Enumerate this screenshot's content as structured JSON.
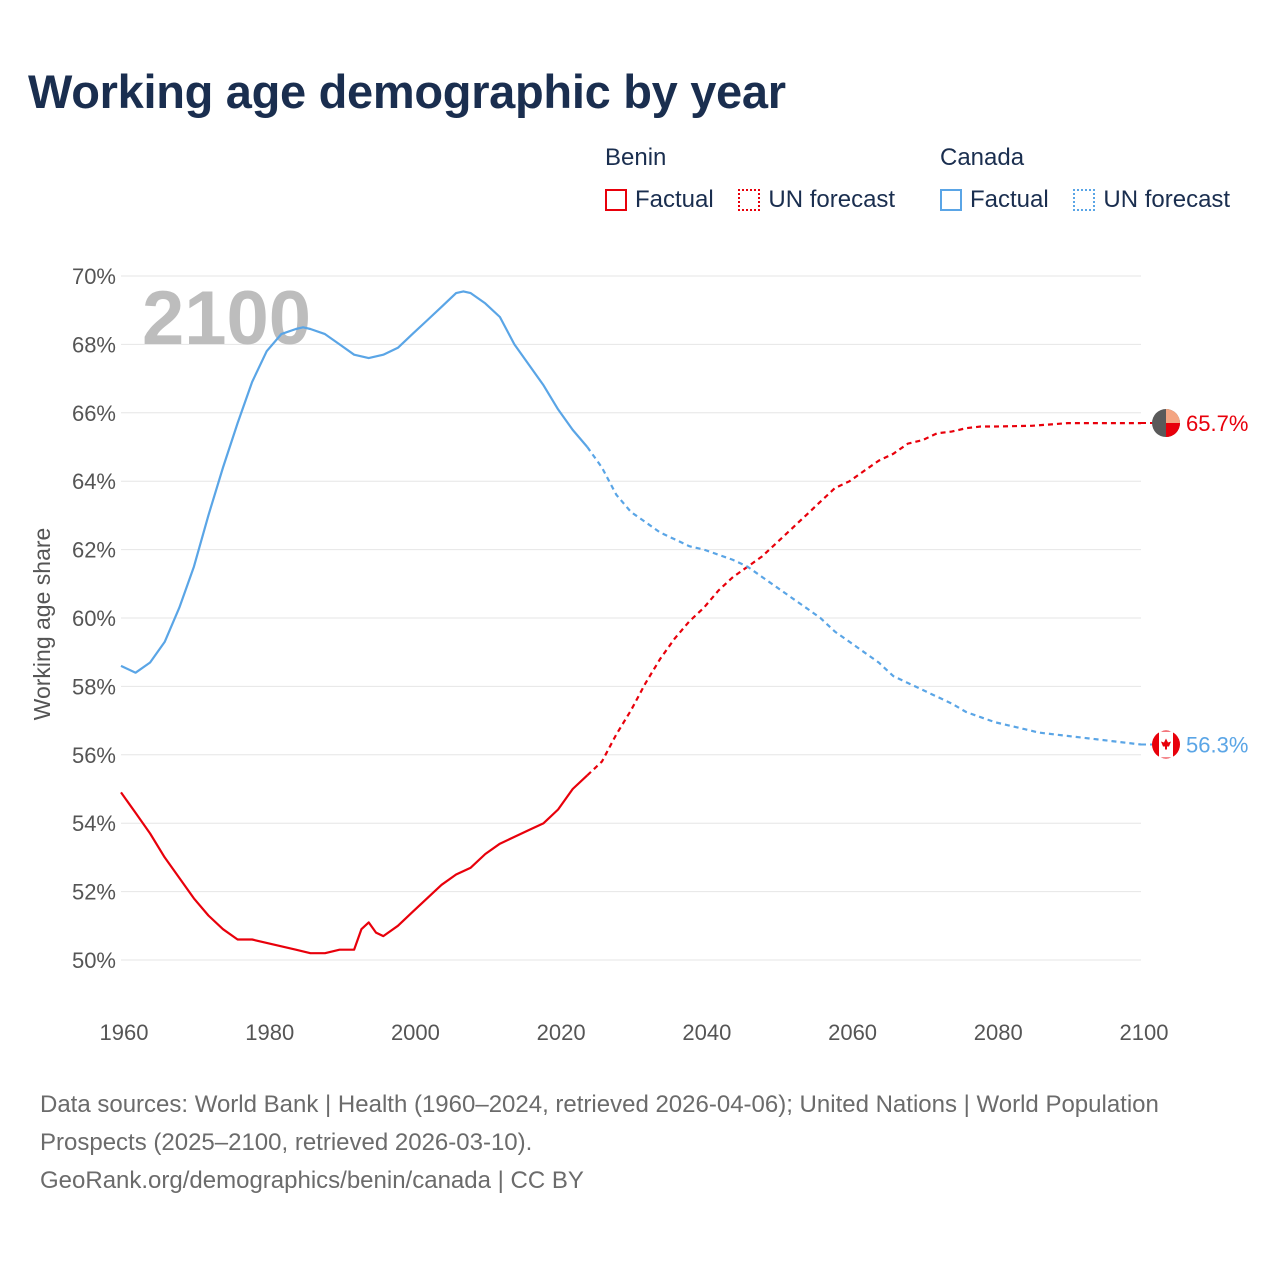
{
  "title": "Working age demographic by year",
  "legend": {
    "groups": [
      {
        "name": "Benin",
        "color": "#e8000b",
        "factual_label": "Factual",
        "forecast_label": "UN forecast"
      },
      {
        "name": "Canada",
        "color": "#5aa5e6",
        "factual_label": "Factual",
        "forecast_label": "UN forecast"
      }
    ]
  },
  "footer": {
    "line1": "Data sources: World Bank | Health (1960–2024, retrieved 2026-04-06); United Nations | World Population Prospects (2025–2100, retrieved 2026-03-10).",
    "line2": "GeoRank.org/demographics/benin/canada | CC BY"
  },
  "chart_data": {
    "type": "line",
    "title": "Working age demographic by year",
    "xlabel": "",
    "ylabel": "Working age share",
    "xlim": [
      1960,
      2100
    ],
    "ylim": [
      50,
      70
    ],
    "x_ticks": [
      "1960",
      "1980",
      "2000",
      "2020",
      "2040",
      "2060",
      "2080",
      "2100"
    ],
    "y_ticks": [
      "50%",
      "52%",
      "54%",
      "56%",
      "58%",
      "60%",
      "62%",
      "64%",
      "66%",
      "68%",
      "70%"
    ],
    "current_year": "2100",
    "grid": true,
    "factual_range": [
      1960,
      2024
    ],
    "forecast_range": [
      2024,
      2100
    ],
    "series": [
      {
        "name": "Benin",
        "color": "#e8000b",
        "end_label": "65.7%",
        "points": [
          [
            1960,
            54.9
          ],
          [
            1962,
            54.3
          ],
          [
            1964,
            53.7
          ],
          [
            1966,
            53.0
          ],
          [
            1968,
            52.4
          ],
          [
            1970,
            51.8
          ],
          [
            1972,
            51.3
          ],
          [
            1974,
            50.9
          ],
          [
            1976,
            50.6
          ],
          [
            1978,
            50.6
          ],
          [
            1980,
            50.5
          ],
          [
            1982,
            50.4
          ],
          [
            1984,
            50.3
          ],
          [
            1986,
            50.2
          ],
          [
            1988,
            50.2
          ],
          [
            1990,
            50.3
          ],
          [
            1992,
            50.3
          ],
          [
            1993,
            50.9
          ],
          [
            1994,
            51.1
          ],
          [
            1995,
            50.8
          ],
          [
            1996,
            50.7
          ],
          [
            1998,
            51.0
          ],
          [
            2000,
            51.4
          ],
          [
            2002,
            51.8
          ],
          [
            2004,
            52.2
          ],
          [
            2006,
            52.5
          ],
          [
            2008,
            52.7
          ],
          [
            2010,
            53.1
          ],
          [
            2012,
            53.4
          ],
          [
            2014,
            53.6
          ],
          [
            2016,
            53.8
          ],
          [
            2018,
            54.0
          ],
          [
            2020,
            54.4
          ],
          [
            2022,
            55.0
          ],
          [
            2024,
            55.4
          ],
          [
            2026,
            55.8
          ],
          [
            2028,
            56.6
          ],
          [
            2030,
            57.3
          ],
          [
            2032,
            58.1
          ],
          [
            2034,
            58.8
          ],
          [
            2036,
            59.4
          ],
          [
            2038,
            59.9
          ],
          [
            2040,
            60.3
          ],
          [
            2042,
            60.8
          ],
          [
            2044,
            61.2
          ],
          [
            2046,
            61.5
          ],
          [
            2048,
            61.8
          ],
          [
            2050,
            62.2
          ],
          [
            2052,
            62.6
          ],
          [
            2054,
            63.0
          ],
          [
            2056,
            63.4
          ],
          [
            2058,
            63.8
          ],
          [
            2060,
            64.0
          ],
          [
            2062,
            64.3
          ],
          [
            2064,
            64.6
          ],
          [
            2066,
            64.8
          ],
          [
            2068,
            65.1
          ],
          [
            2070,
            65.2
          ],
          [
            2072,
            65.4
          ],
          [
            2074,
            65.45
          ],
          [
            2076,
            65.55
          ],
          [
            2078,
            65.6
          ],
          [
            2080,
            65.6
          ],
          [
            2085,
            65.62
          ],
          [
            2090,
            65.7
          ],
          [
            2095,
            65.7
          ],
          [
            2100,
            65.7
          ]
        ]
      },
      {
        "name": "Canada",
        "color": "#5aa5e6",
        "end_label": "56.3%",
        "points": [
          [
            1960,
            58.6
          ],
          [
            1962,
            58.4
          ],
          [
            1964,
            58.7
          ],
          [
            1966,
            59.3
          ],
          [
            1968,
            60.3
          ],
          [
            1970,
            61.5
          ],
          [
            1972,
            63.0
          ],
          [
            1974,
            64.4
          ],
          [
            1976,
            65.7
          ],
          [
            1978,
            66.9
          ],
          [
            1980,
            67.8
          ],
          [
            1982,
            68.3
          ],
          [
            1984,
            68.45
          ],
          [
            1985,
            68.5
          ],
          [
            1986,
            68.45
          ],
          [
            1988,
            68.3
          ],
          [
            1990,
            68.0
          ],
          [
            1992,
            67.7
          ],
          [
            1994,
            67.6
          ],
          [
            1996,
            67.7
          ],
          [
            1998,
            67.9
          ],
          [
            2000,
            68.3
          ],
          [
            2002,
            68.7
          ],
          [
            2004,
            69.1
          ],
          [
            2006,
            69.5
          ],
          [
            2007,
            69.55
          ],
          [
            2008,
            69.5
          ],
          [
            2010,
            69.2
          ],
          [
            2012,
            68.8
          ],
          [
            2014,
            68.0
          ],
          [
            2016,
            67.4
          ],
          [
            2018,
            66.8
          ],
          [
            2020,
            66.1
          ],
          [
            2022,
            65.5
          ],
          [
            2024,
            65.0
          ],
          [
            2026,
            64.4
          ],
          [
            2028,
            63.6
          ],
          [
            2030,
            63.1
          ],
          [
            2032,
            62.8
          ],
          [
            2034,
            62.5
          ],
          [
            2036,
            62.3
          ],
          [
            2038,
            62.1
          ],
          [
            2040,
            62.0
          ],
          [
            2042,
            61.85
          ],
          [
            2044,
            61.7
          ],
          [
            2046,
            61.5
          ],
          [
            2048,
            61.2
          ],
          [
            2050,
            60.9
          ],
          [
            2052,
            60.6
          ],
          [
            2054,
            60.3
          ],
          [
            2056,
            60.0
          ],
          [
            2058,
            59.6
          ],
          [
            2060,
            59.3
          ],
          [
            2062,
            59.0
          ],
          [
            2064,
            58.7
          ],
          [
            2066,
            58.3
          ],
          [
            2068,
            58.1
          ],
          [
            2070,
            57.9
          ],
          [
            2072,
            57.7
          ],
          [
            2074,
            57.5
          ],
          [
            2076,
            57.25
          ],
          [
            2078,
            57.1
          ],
          [
            2080,
            56.95
          ],
          [
            2082,
            56.85
          ],
          [
            2084,
            56.75
          ],
          [
            2086,
            56.65
          ],
          [
            2088,
            56.6
          ],
          [
            2090,
            56.55
          ],
          [
            2092,
            56.5
          ],
          [
            2094,
            56.45
          ],
          [
            2096,
            56.4
          ],
          [
            2098,
            56.35
          ],
          [
            2100,
            56.3
          ]
        ]
      }
    ]
  }
}
